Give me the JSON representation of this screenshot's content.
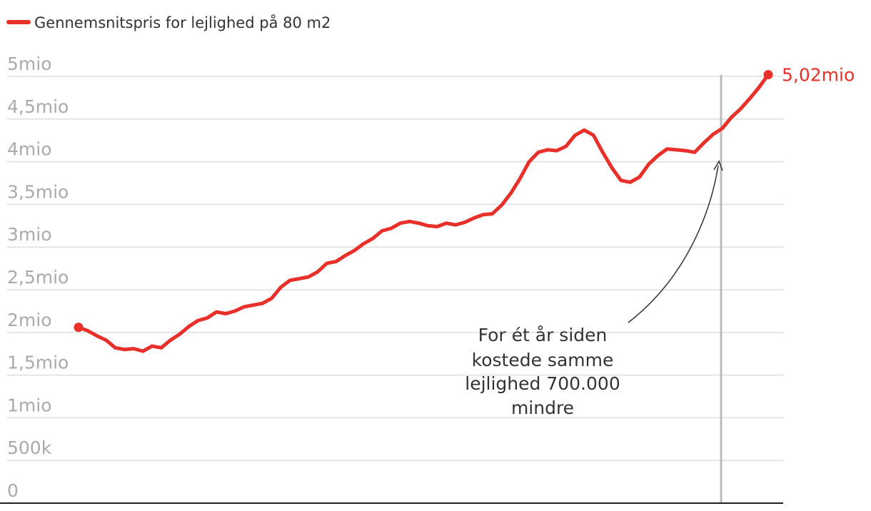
{
  "chart_data": {
    "type": "line",
    "categories": [
      null,
      null,
      null,
      null,
      null,
      null,
      null,
      null,
      null,
      null,
      null,
      null,
      null,
      null,
      null,
      null,
      null,
      null,
      null,
      null,
      null,
      null,
      null,
      null,
      null,
      null,
      null,
      null,
      null,
      null,
      null,
      null,
      null,
      null,
      null,
      null,
      null,
      null,
      null,
      null,
      null,
      null,
      null,
      null,
      null,
      null,
      null,
      null,
      null,
      null,
      null,
      null,
      null,
      null,
      null,
      null,
      null,
      null,
      null,
      null,
      null,
      null,
      null,
      null,
      null,
      null,
      null,
      null,
      null,
      null,
      null,
      null,
      null,
      null,
      null,
      null
    ],
    "series": [
      {
        "name": "Gennemsnitspris for lejlighed på 80 m2",
        "color": "#e8302a",
        "values": [
          2060000,
          2020000,
          1960000,
          1910000,
          1820000,
          1800000,
          1810000,
          1780000,
          1840000,
          1820000,
          1910000,
          1980000,
          2070000,
          2140000,
          2170000,
          2240000,
          2220000,
          2250000,
          2300000,
          2320000,
          2340000,
          2400000,
          2530000,
          2610000,
          2630000,
          2650000,
          2710000,
          2810000,
          2830000,
          2900000,
          2960000,
          3040000,
          3100000,
          3190000,
          3220000,
          3280000,
          3300000,
          3280000,
          3250000,
          3240000,
          3280000,
          3260000,
          3290000,
          3340000,
          3380000,
          3390000,
          3490000,
          3630000,
          3800000,
          4000000,
          4110000,
          4140000,
          4130000,
          4180000,
          4310000,
          4370000,
          4310000,
          4110000,
          3930000,
          3780000,
          3760000,
          3820000,
          3970000,
          4070000,
          4150000,
          4140000,
          4130000,
          4110000,
          4220000,
          4320000,
          4390000,
          4520000,
          4620000,
          4740000,
          4870000,
          5020000
        ],
        "value_labels": [
          null,
          null,
          null,
          null,
          null,
          null,
          null,
          null,
          null,
          null,
          null,
          null,
          null,
          null,
          null,
          null,
          null,
          null,
          null,
          null,
          null,
          null,
          null,
          null,
          null,
          null,
          null,
          null,
          null,
          null,
          null,
          null,
          null,
          null,
          null,
          null,
          null,
          null,
          null,
          null,
          null,
          null,
          null,
          null,
          null,
          null,
          null,
          null,
          null,
          null,
          null,
          null,
          null,
          null,
          null,
          null,
          null,
          null,
          null,
          null,
          null,
          null,
          null,
          null,
          null,
          null,
          null,
          null,
          null,
          null,
          null,
          null,
          null,
          null,
          null,
          "5,02mio"
        ]
      }
    ],
    "ylim": [
      0,
      5000000
    ],
    "yticks": [
      0,
      {
        "value": 500000,
        "label": "500k"
      },
      {
        "value": 1000000,
        "label": "1mio"
      },
      {
        "value": 1500000,
        "label": "1,5mio"
      },
      {
        "value": 2000000,
        "label": "2mio"
      },
      {
        "value": 2500000,
        "label": "2,5mio"
      },
      {
        "value": 3000000,
        "label": "3mio"
      },
      {
        "value": 3500000,
        "label": "3,5mio"
      },
      {
        "value": 4000000,
        "label": "4mio"
      },
      {
        "value": 4500000,
        "label": "4,5mio"
      },
      {
        "value": 5000000,
        "label": "5mio"
      }
    ],
    "grid": true,
    "legend": "top-left",
    "annotation": [
      "For ét år siden",
      "kostede samme",
      "lejlighed 700.000",
      "mindre"
    ]
  }
}
